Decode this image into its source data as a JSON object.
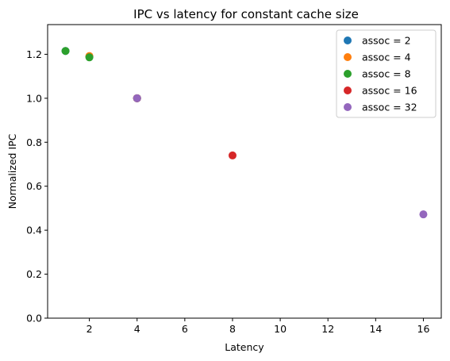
{
  "chart_data": {
    "type": "scatter",
    "title": "IPC vs latency for constant cache size",
    "xlabel": "Latency",
    "ylabel": "Normalized IPC",
    "xlim": [
      0.25,
      16.75
    ],
    "ylim": [
      0.0,
      1.335
    ],
    "xticks": [
      2,
      4,
      6,
      8,
      10,
      12,
      14,
      16
    ],
    "yticks": [
      0.0,
      0.2,
      0.4,
      0.6,
      0.8,
      1.0,
      1.2
    ],
    "grid": false,
    "legend_position": "top-right",
    "series": [
      {
        "name": "assoc = 2",
        "color": "#1f77b4",
        "points": [
          [
            1,
            1.215
          ],
          [
            2,
            1.19
          ],
          [
            4,
            1.0
          ]
        ]
      },
      {
        "name": "assoc = 4",
        "color": "#ff7f0e",
        "points": [
          [
            2,
            1.192
          ],
          [
            4,
            1.0
          ]
        ]
      },
      {
        "name": "assoc = 8",
        "color": "#2ca02c",
        "points": [
          [
            1,
            1.215
          ],
          [
            2,
            1.186
          ],
          [
            4,
            1.0
          ]
        ]
      },
      {
        "name": "assoc = 16",
        "color": "#d62728",
        "points": [
          [
            4,
            1.0
          ],
          [
            8,
            0.74
          ]
        ]
      },
      {
        "name": "assoc = 32",
        "color": "#9467bd",
        "points": [
          [
            4,
            1.0
          ],
          [
            16,
            0.472
          ]
        ]
      }
    ]
  }
}
